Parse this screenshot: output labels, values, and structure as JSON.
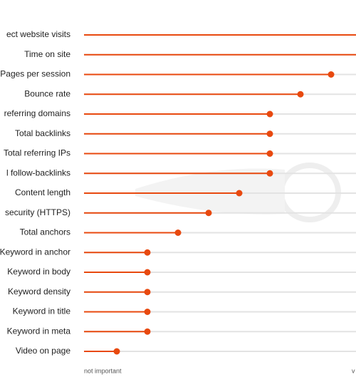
{
  "chart_data": {
    "type": "lollipop",
    "categories": [
      "ect website visits",
      "Time on site",
      "Pages per session",
      "Bounce rate",
      "referring domains",
      "Total backlinks",
      "Total referring IPs",
      "l follow-backlinks",
      "Content length",
      "security (HTTPS)",
      "Total anchors",
      "Keyword in anchor",
      "Keyword in body",
      "Keyword density",
      "Keyword in title",
      "Keyword in meta",
      "Video on page"
    ],
    "values": [
      9,
      9,
      8,
      7,
      6,
      6,
      6,
      6,
      5,
      4,
      3,
      2,
      2,
      2,
      2,
      2,
      1
    ],
    "color": "#e8490f",
    "xlim": [
      0,
      9
    ],
    "x_axis_labels": [
      "not important",
      "v"
    ]
  }
}
